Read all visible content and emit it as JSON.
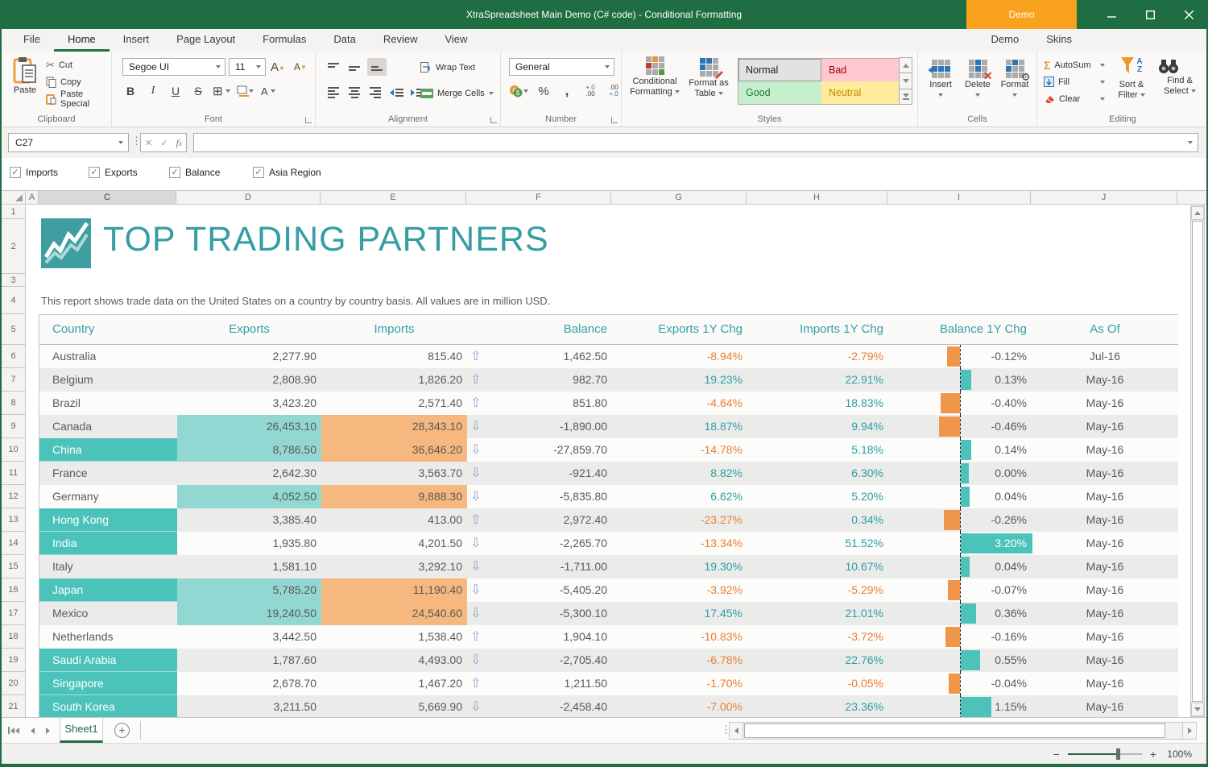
{
  "window": {
    "title": "XtraSpreadsheet Main Demo (C# code) - Conditional Formatting",
    "demo_badge": "Demo"
  },
  "ribbon": {
    "tabs": [
      "File",
      "Home",
      "Insert",
      "Page Layout",
      "Formulas",
      "Data",
      "Review",
      "View"
    ],
    "active_tab": "Home",
    "right_tabs": [
      "Demo",
      "Skins"
    ],
    "groups": {
      "clipboard": {
        "label": "Clipboard",
        "paste": "Paste",
        "cut": "Cut",
        "copy": "Copy",
        "paste_special": "Paste Special"
      },
      "font": {
        "label": "Font",
        "font_name": "Segoe UI",
        "font_size": "11"
      },
      "alignment": {
        "label": "Alignment",
        "wrap_text": "Wrap Text",
        "merge_cells": "Merge Cells"
      },
      "number": {
        "label": "Number",
        "format": "General"
      },
      "styles": {
        "label": "Styles",
        "conditional_formatting": "Conditional Formatting",
        "format_as_table": "Format as Table",
        "gallery": [
          {
            "label": "Normal",
            "bg": "#E2E2E2",
            "fg": "#1d1d1d",
            "border": "#999999"
          },
          {
            "label": "Bad",
            "bg": "#FFC7CE",
            "fg": "#9C0006",
            "border": "#FFC7CE"
          },
          {
            "label": "Good",
            "bg": "#C6EFCE",
            "fg": "#1E7B34",
            "border": "#C6EFCE"
          },
          {
            "label": "Neutral",
            "bg": "#FFEB9C",
            "fg": "#BF8F00",
            "border": "#FFEB9C"
          }
        ]
      },
      "cells": {
        "label": "Cells",
        "insert": "Insert",
        "delete": "Delete",
        "format": "Format"
      },
      "editing": {
        "label": "Editing",
        "autosum": "AutoSum",
        "fill": "Fill",
        "clear": "Clear",
        "sort_filter": "Sort & Filter",
        "find_select": "Find & Select"
      }
    }
  },
  "formula_bar": {
    "name_box": "C27",
    "formula": ""
  },
  "filters": [
    {
      "label": "Imports",
      "checked": true
    },
    {
      "label": "Exports",
      "checked": true
    },
    {
      "label": "Balance",
      "checked": true
    },
    {
      "label": "Asia Region",
      "checked": true
    }
  ],
  "sheet": {
    "columns": [
      "A",
      "C",
      "D",
      "E",
      "F",
      "G",
      "H",
      "I",
      "J"
    ],
    "active_column": "C",
    "rows": [
      "1",
      "2",
      "3",
      "4",
      "5",
      "6",
      "7",
      "8",
      "9",
      "10",
      "11",
      "12",
      "13",
      "14",
      "15",
      "16",
      "17",
      "18",
      "19",
      "20",
      "21"
    ]
  },
  "report": {
    "title": "TOP TRADING PARTNERS",
    "subtitle": "This report shows trade data on the United States on a country by country basis. All values are in million USD.",
    "table": {
      "headers": [
        "Country",
        "Exports",
        "Imports",
        "Balance",
        "Exports 1Y Chg",
        "Imports 1Y Chg",
        "Balance 1Y Chg",
        "As Of"
      ],
      "rows": [
        {
          "country": "Australia",
          "exports": "2,277.90",
          "imports": "815.40",
          "trend": "up",
          "balance": "1,462.50",
          "exports_chg": "-8.94%",
          "imports_chg": "-2.79%",
          "balance_chg": "-0.12%",
          "balance_chg_value": -0.12,
          "as_of": "Jul-16",
          "asia": false,
          "highlight": false
        },
        {
          "country": "Belgium",
          "exports": "2,808.90",
          "imports": "1,826.20",
          "trend": "up",
          "balance": "982.70",
          "exports_chg": "19.23%",
          "imports_chg": "22.91%",
          "balance_chg": "0.13%",
          "balance_chg_value": 0.13,
          "as_of": "May-16",
          "asia": false,
          "highlight": false
        },
        {
          "country": "Brazil",
          "exports": "3,423.20",
          "imports": "2,571.40",
          "trend": "up",
          "balance": "851.80",
          "exports_chg": "-4.64%",
          "imports_chg": "18.83%",
          "balance_chg": "-0.40%",
          "balance_chg_value": -0.4,
          "as_of": "May-16",
          "asia": false,
          "highlight": false
        },
        {
          "country": "Canada",
          "exports": "26,453.10",
          "imports": "28,343.10",
          "trend": "down",
          "balance": "-1,890.00",
          "exports_chg": "18.87%",
          "imports_chg": "9.94%",
          "balance_chg": "-0.46%",
          "balance_chg_value": -0.46,
          "as_of": "May-16",
          "asia": false,
          "highlight": true
        },
        {
          "country": "China",
          "exports": "8,786.50",
          "imports": "36,646.20",
          "trend": "down",
          "balance": "-27,859.70",
          "exports_chg": "-14.78%",
          "imports_chg": "5.18%",
          "balance_chg": "0.14%",
          "balance_chg_value": 0.14,
          "as_of": "May-16",
          "asia": true,
          "highlight": true
        },
        {
          "country": "France",
          "exports": "2,642.30",
          "imports": "3,563.70",
          "trend": "down",
          "balance": "-921.40",
          "exports_chg": "8.82%",
          "imports_chg": "6.30%",
          "balance_chg": "0.00%",
          "balance_chg_value": 0.0,
          "as_of": "May-16",
          "asia": false,
          "highlight": false
        },
        {
          "country": "Germany",
          "exports": "4,052.50",
          "imports": "9,888.30",
          "trend": "down",
          "balance": "-5,835.80",
          "exports_chg": "6.62%",
          "imports_chg": "5.20%",
          "balance_chg": "0.04%",
          "balance_chg_value": 0.04,
          "as_of": "May-16",
          "asia": false,
          "highlight": true
        },
        {
          "country": "Hong Kong",
          "exports": "3,385.40",
          "imports": "413.00",
          "trend": "up",
          "balance": "2,972.40",
          "exports_chg": "-23.27%",
          "imports_chg": "0.34%",
          "balance_chg": "-0.26%",
          "balance_chg_value": -0.26,
          "as_of": "May-16",
          "asia": true,
          "highlight": false
        },
        {
          "country": "India",
          "exports": "1,935.80",
          "imports": "4,201.50",
          "trend": "down",
          "balance": "-2,265.70",
          "exports_chg": "-13.34%",
          "imports_chg": "51.52%",
          "balance_chg": "3.20%",
          "balance_chg_value": 3.2,
          "as_of": "May-16",
          "asia": true,
          "highlight": false
        },
        {
          "country": "Italy",
          "exports": "1,581.10",
          "imports": "3,292.10",
          "trend": "down",
          "balance": "-1,711.00",
          "exports_chg": "19.30%",
          "imports_chg": "10.67%",
          "balance_chg": "0.04%",
          "balance_chg_value": 0.04,
          "as_of": "May-16",
          "asia": false,
          "highlight": false
        },
        {
          "country": "Japan",
          "exports": "5,785.20",
          "imports": "11,190.40",
          "trend": "down",
          "balance": "-5,405.20",
          "exports_chg": "-3.92%",
          "imports_chg": "-5.29%",
          "balance_chg": "-0.07%",
          "balance_chg_value": -0.07,
          "as_of": "May-16",
          "asia": true,
          "highlight": true
        },
        {
          "country": "Mexico",
          "exports": "19,240.50",
          "imports": "24,540.60",
          "trend": "down",
          "balance": "-5,300.10",
          "exports_chg": "17.45%",
          "imports_chg": "21.01%",
          "balance_chg": "0.36%",
          "balance_chg_value": 0.36,
          "as_of": "May-16",
          "asia": false,
          "highlight": true
        },
        {
          "country": "Netherlands",
          "exports": "3,442.50",
          "imports": "1,538.40",
          "trend": "up",
          "balance": "1,904.10",
          "exports_chg": "-10.83%",
          "imports_chg": "-3.72%",
          "balance_chg": "-0.16%",
          "balance_chg_value": -0.16,
          "as_of": "May-16",
          "asia": false,
          "highlight": false
        },
        {
          "country": "Saudi Arabia",
          "exports": "1,787.60",
          "imports": "4,493.00",
          "trend": "down",
          "balance": "-2,705.40",
          "exports_chg": "-6.78%",
          "imports_chg": "22.76%",
          "balance_chg": "0.55%",
          "balance_chg_value": 0.55,
          "as_of": "May-16",
          "asia": true,
          "highlight": false
        },
        {
          "country": "Singapore",
          "exports": "2,678.70",
          "imports": "1,467.20",
          "trend": "up",
          "balance": "1,211.50",
          "exports_chg": "-1.70%",
          "imports_chg": "-0.05%",
          "balance_chg": "-0.04%",
          "balance_chg_value": -0.04,
          "as_of": "May-16",
          "asia": true,
          "highlight": false
        },
        {
          "country": "South Korea",
          "exports": "3,211.50",
          "imports": "5,669.90",
          "trend": "down",
          "balance": "-2,458.40",
          "exports_chg": "-7.00%",
          "imports_chg": "23.36%",
          "balance_chg": "1.15%",
          "balance_chg_value": 1.15,
          "as_of": "May-16",
          "asia": true,
          "highlight": false
        }
      ]
    }
  },
  "sheet_tabs": {
    "active": "Sheet1"
  },
  "status_bar": {
    "zoom_level": "100%"
  },
  "icons": {
    "up_arrow": "⇧",
    "down_arrow": "⇩",
    "check": "✓"
  },
  "colors": {
    "titlebar_green": "#1F6E43",
    "accent_green": "#217346",
    "demo_orange": "#F9A21D",
    "report_teal": "#359DA4",
    "asia_fill": "#4CC3BA",
    "exports_fill": "#92D7D1",
    "imports_fill": "#F6B87E",
    "bar_negative": "#F0964B",
    "bar_positive": "#4CC3BA",
    "negative_text": "#ED7D31",
    "positive_text": "#2CA0A6"
  }
}
